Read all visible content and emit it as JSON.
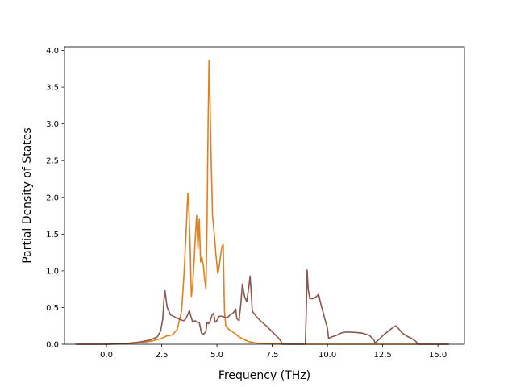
{
  "chart_data": {
    "type": "line",
    "title": "",
    "xlabel": "Frequency (THz)",
    "ylabel": "Partial Density of States",
    "xlim": [
      -1.9,
      16.2
    ],
    "ylim": [
      0,
      4.05
    ],
    "xticks": [
      0.0,
      2.5,
      5.0,
      7.5,
      10.0,
      12.5,
      15.0
    ],
    "xtick_labels": [
      "0.0",
      "2.5",
      "5.0",
      "7.5",
      "10.0",
      "12.5",
      "15.0"
    ],
    "yticks": [
      0.0,
      0.5,
      1.0,
      1.5,
      2.0,
      2.5,
      3.0,
      3.5,
      4.0
    ],
    "ytick_labels": [
      "0.0",
      "0.5",
      "1.0",
      "1.5",
      "2.0",
      "2.5",
      "3.0",
      "3.5",
      "4.0"
    ],
    "grid": false,
    "legend": "none",
    "series": [
      {
        "color": "#e37f1c",
        "points": [
          [
            -1.4,
            0.0
          ],
          [
            0.0,
            0.0
          ],
          [
            0.5,
            0.004
          ],
          [
            1.0,
            0.01
          ],
          [
            1.5,
            0.02
          ],
          [
            2.0,
            0.04
          ],
          [
            2.5,
            0.08
          ],
          [
            2.7,
            0.11
          ],
          [
            3.0,
            0.13
          ],
          [
            3.2,
            0.2
          ],
          [
            3.4,
            0.45
          ],
          [
            3.5,
            0.9
          ],
          [
            3.6,
            1.5
          ],
          [
            3.68,
            2.05
          ],
          [
            3.72,
            1.9
          ],
          [
            3.78,
            1.4
          ],
          [
            3.84,
            0.65
          ],
          [
            3.9,
            0.8
          ],
          [
            3.96,
            1.1
          ],
          [
            4.02,
            1.45
          ],
          [
            4.08,
            1.75
          ],
          [
            4.14,
            1.3
          ],
          [
            4.2,
            1.7
          ],
          [
            4.26,
            1.12
          ],
          [
            4.32,
            1.18
          ],
          [
            4.38,
            1.08
          ],
          [
            4.44,
            0.9
          ],
          [
            4.5,
            0.75
          ],
          [
            4.55,
            1.6
          ],
          [
            4.6,
            3.0
          ],
          [
            4.64,
            3.86
          ],
          [
            4.68,
            3.4
          ],
          [
            4.74,
            2.5
          ],
          [
            4.8,
            1.75
          ],
          [
            4.88,
            1.5
          ],
          [
            4.96,
            1.2
          ],
          [
            5.04,
            0.96
          ],
          [
            5.1,
            1.05
          ],
          [
            5.16,
            1.2
          ],
          [
            5.22,
            1.32
          ],
          [
            5.28,
            1.36
          ],
          [
            5.34,
            0.45
          ],
          [
            5.4,
            0.25
          ],
          [
            5.55,
            0.2
          ],
          [
            5.8,
            0.15
          ],
          [
            6.0,
            0.1
          ],
          [
            6.2,
            0.07
          ],
          [
            6.4,
            0.04
          ],
          [
            6.7,
            0.02
          ],
          [
            7.0,
            0.01
          ],
          [
            7.5,
            0.005
          ],
          [
            8.0,
            0.002
          ],
          [
            9.0,
            0.0
          ],
          [
            12.0,
            0.0
          ],
          [
            15.5,
            0.0
          ]
        ]
      },
      {
        "color": "#8b574e",
        "points": [
          [
            -1.4,
            0.0
          ],
          [
            0.0,
            0.0
          ],
          [
            0.5,
            0.005
          ],
          [
            1.0,
            0.015
          ],
          [
            1.5,
            0.03
          ],
          [
            2.0,
            0.06
          ],
          [
            2.3,
            0.1
          ],
          [
            2.45,
            0.18
          ],
          [
            2.55,
            0.35
          ],
          [
            2.6,
            0.6
          ],
          [
            2.65,
            0.73
          ],
          [
            2.7,
            0.6
          ],
          [
            2.75,
            0.5
          ],
          [
            2.9,
            0.4
          ],
          [
            3.1,
            0.37
          ],
          [
            3.3,
            0.34
          ],
          [
            3.5,
            0.32
          ],
          [
            3.6,
            0.35
          ],
          [
            3.7,
            0.42
          ],
          [
            3.75,
            0.46
          ],
          [
            3.82,
            0.38
          ],
          [
            3.9,
            0.3
          ],
          [
            4.0,
            0.32
          ],
          [
            4.1,
            0.3
          ],
          [
            4.2,
            0.3
          ],
          [
            4.3,
            0.15
          ],
          [
            4.4,
            0.14
          ],
          [
            4.5,
            0.17
          ],
          [
            4.55,
            0.3
          ],
          [
            4.62,
            0.28
          ],
          [
            4.7,
            0.32
          ],
          [
            4.78,
            0.4
          ],
          [
            4.85,
            0.42
          ],
          [
            4.92,
            0.3
          ],
          [
            5.0,
            0.32
          ],
          [
            5.1,
            0.38
          ],
          [
            5.25,
            0.38
          ],
          [
            5.4,
            0.36
          ],
          [
            5.5,
            0.37
          ],
          [
            5.6,
            0.4
          ],
          [
            5.75,
            0.43
          ],
          [
            5.85,
            0.48
          ],
          [
            5.9,
            0.35
          ],
          [
            6.0,
            0.32
          ],
          [
            6.08,
            0.55
          ],
          [
            6.15,
            0.82
          ],
          [
            6.25,
            0.65
          ],
          [
            6.35,
            0.58
          ],
          [
            6.45,
            0.8
          ],
          [
            6.5,
            0.93
          ],
          [
            6.55,
            0.7
          ],
          [
            6.6,
            0.45
          ],
          [
            6.8,
            0.37
          ],
          [
            7.0,
            0.31
          ],
          [
            7.2,
            0.26
          ],
          [
            7.4,
            0.2
          ],
          [
            7.6,
            0.14
          ],
          [
            7.8,
            0.08
          ],
          [
            7.9,
            0.04
          ],
          [
            7.95,
            0.0
          ],
          [
            9.0,
            0.0
          ],
          [
            9.05,
            0.55
          ],
          [
            9.08,
            1.01
          ],
          [
            9.13,
            0.75
          ],
          [
            9.2,
            0.62
          ],
          [
            9.35,
            0.62
          ],
          [
            9.5,
            0.65
          ],
          [
            9.6,
            0.68
          ],
          [
            9.7,
            0.55
          ],
          [
            9.85,
            0.38
          ],
          [
            10.0,
            0.22
          ],
          [
            10.05,
            0.08
          ],
          [
            10.2,
            0.1
          ],
          [
            10.4,
            0.12
          ],
          [
            10.6,
            0.15
          ],
          [
            10.8,
            0.165
          ],
          [
            11.0,
            0.165
          ],
          [
            11.3,
            0.16
          ],
          [
            11.6,
            0.15
          ],
          [
            11.9,
            0.12
          ],
          [
            12.1,
            0.06
          ],
          [
            12.15,
            0.02
          ],
          [
            12.2,
            0.03
          ],
          [
            12.35,
            0.07
          ],
          [
            12.55,
            0.13
          ],
          [
            12.8,
            0.19
          ],
          [
            13.0,
            0.235
          ],
          [
            13.1,
            0.25
          ],
          [
            13.2,
            0.22
          ],
          [
            13.4,
            0.15
          ],
          [
            13.6,
            0.11
          ],
          [
            13.8,
            0.08
          ],
          [
            14.0,
            0.04
          ],
          [
            14.1,
            0.0
          ],
          [
            15.5,
            0.0
          ]
        ]
      }
    ]
  }
}
